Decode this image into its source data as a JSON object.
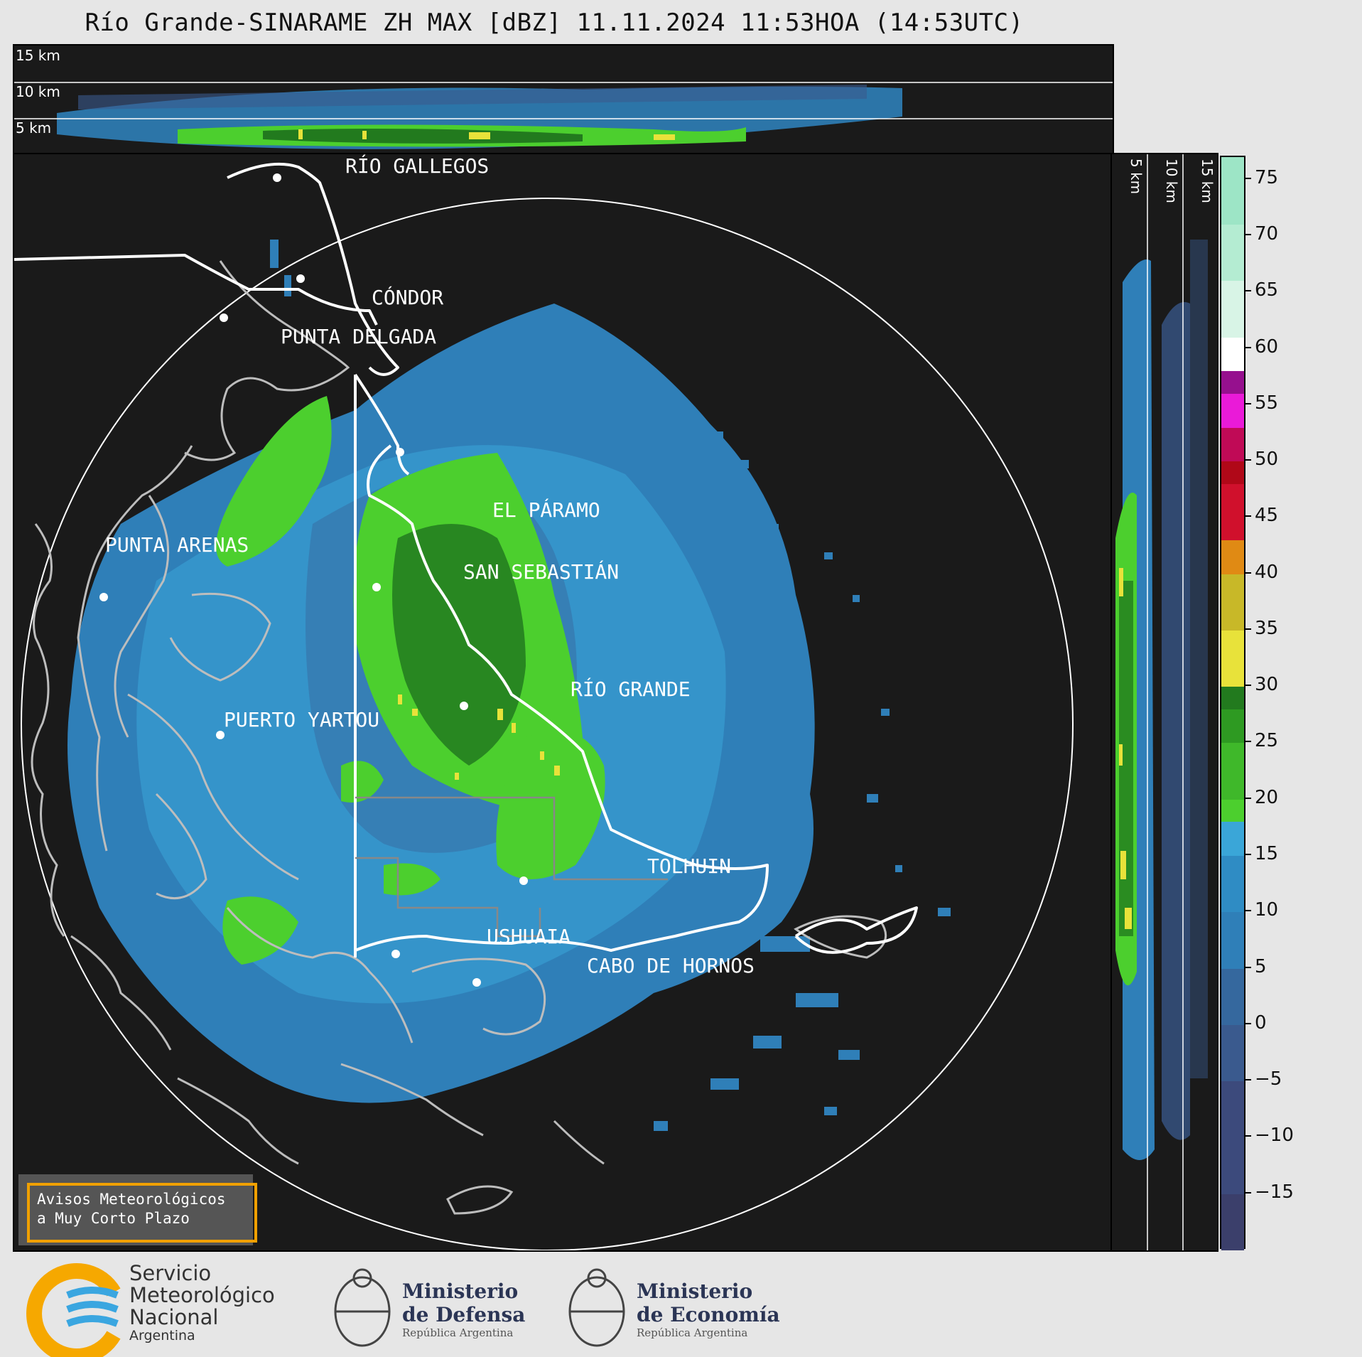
{
  "title": "Río Grande-SINARAME ZH MAX [dBZ] 11.11.2024 11:53HOA (14:53UTC)",
  "top_profile": {
    "labels": [
      "15 km",
      "10 km",
      "5 km"
    ]
  },
  "side_profile": {
    "labels": [
      "5 km",
      "10 km",
      "15 km"
    ]
  },
  "cities": [
    {
      "name": "RÍO GALLEGOS"
    },
    {
      "name": "CÓNDOR"
    },
    {
      "name": "PUNTA DELGADA"
    },
    {
      "name": "EL PÁRAMO"
    },
    {
      "name": "PUNTA ARENAS"
    },
    {
      "name": "SAN SEBASTIÁN"
    },
    {
      "name": "RÍO GRANDE"
    },
    {
      "name": "PUERTO YARTOU"
    },
    {
      "name": "TOLHUIN"
    },
    {
      "name": "USHUAIA"
    },
    {
      "name": "CABO DE HORNOS"
    }
  ],
  "colorbar": {
    "ticks": [
      "75",
      "70",
      "65",
      "60",
      "55",
      "50",
      "45",
      "40",
      "35",
      "30",
      "25",
      "20",
      "15",
      "10",
      "5",
      "0",
      "−5",
      "−10",
      "−15"
    ],
    "range": [
      -20,
      77
    ],
    "colors": {
      "very_low": "#3b3f6b",
      "low": "#3a5a8e",
      "mid_blue": "#2f7fb8",
      "light_blue": "#3aa6d8",
      "green": "#4ccf2e",
      "dark_green": "#227a1e",
      "yellow": "#e8e23a",
      "orange": "#e08a14",
      "red": "#d0102c",
      "magenta": "#ea1ad8",
      "purple": "#96108e",
      "white": "#ffffff",
      "mint": "#9de5c6"
    }
  },
  "avisos": {
    "line1": "Avisos Meteorológicos",
    "line2": "a Muy Corto Plazo"
  },
  "logos": {
    "smn": {
      "line1": "Servicio",
      "line2": "Meteorológico",
      "line3": "Nacional",
      "line4": "Argentina"
    },
    "defensa": {
      "line1": "Ministerio",
      "line2": "de Defensa",
      "line3": "República Argentina"
    },
    "economia": {
      "line1": "Ministerio",
      "line2": "de Economía",
      "line3": "República Argentina"
    }
  }
}
